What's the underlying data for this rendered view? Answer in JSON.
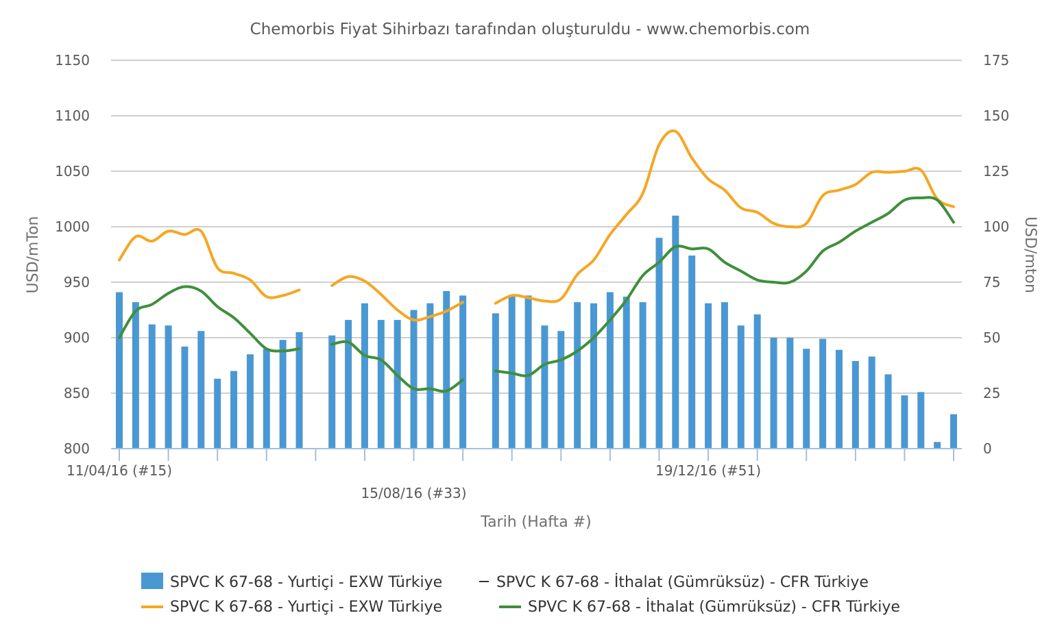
{
  "colors": {
    "bars": "#4a98d3",
    "line_a": "#f6a623",
    "line_b": "#3f8f3b",
    "grid": "#bfbfbf",
    "axis": "#a6bfd6"
  },
  "chart_data": {
    "type": "bar",
    "title": "Chemorbis Fiyat Sihirbazı tarafından oluşturuldu - www.chemorbis.com",
    "xlabel": "Tarih (Hafta #)",
    "ylabel": "USD/mTon",
    "y2label": "USD/mton",
    "ylim": [
      800,
      1150
    ],
    "y2lim": [
      0,
      175
    ],
    "yticks": [
      800,
      850,
      900,
      950,
      1000,
      1050,
      1100,
      1150
    ],
    "y2ticks": [
      0,
      25,
      50,
      75,
      100,
      125,
      150,
      175
    ],
    "grid": true,
    "legend_position": "bottom",
    "x_range": [
      0,
      51
    ],
    "x_labels": [
      {
        "x": 0,
        "text": "11/04/16 (#15)",
        "row": 1
      },
      {
        "x": 18,
        "text": "15/08/16 (#33)",
        "row": 2
      },
      {
        "x": 36,
        "text": "19/12/16 (#51)",
        "row": 1
      }
    ],
    "x_tick_marks": [
      0,
      3,
      6,
      9,
      12,
      15,
      18,
      21,
      24,
      27,
      30,
      33,
      36,
      39,
      42,
      45,
      48,
      51
    ],
    "series": [
      {
        "name": "SPVC K 67-68 - Yurtiçi - EXW Türkiye",
        "axis": "left",
        "kind": "bar",
        "x": [
          0,
          1,
          2,
          3,
          4,
          5,
          6,
          7,
          8,
          9,
          10,
          11,
          13,
          14,
          15,
          16,
          17,
          18,
          19,
          20,
          21,
          23,
          24,
          25,
          26,
          27,
          28,
          29,
          30,
          31,
          32,
          33,
          34,
          35,
          36,
          37,
          38,
          39,
          40,
          41,
          42,
          43,
          44,
          45,
          46,
          47,
          48,
          49,
          50,
          51
        ],
        "values": [
          941,
          932,
          912,
          911,
          892,
          906,
          863,
          870,
          885,
          890,
          898,
          905,
          902,
          916,
          931,
          916,
          916,
          925,
          931,
          942,
          938,
          922,
          938,
          938,
          911,
          906,
          932,
          931,
          941,
          937,
          932,
          990,
          1010,
          974,
          931,
          932,
          911,
          921,
          900,
          900,
          890,
          899,
          889,
          879,
          883,
          867,
          848,
          851,
          806,
          831
        ]
      },
      {
        "name": "SPVC K 67-68 - Yurtiçi - EXW Türkiye",
        "axis": "left",
        "kind": "line",
        "segments": [
          {
            "x": [
              0,
              1,
              2,
              3,
              4,
              5,
              6,
              7,
              8,
              9,
              10,
              11
            ],
            "values": [
              970,
              991,
              987,
              996,
              993,
              996,
              963,
              958,
              952,
              937,
              938,
              943
            ]
          },
          {
            "x": [
              13,
              14,
              15,
              16,
              17,
              18,
              19,
              20,
              21
            ],
            "values": [
              947,
              955,
              951,
              939,
              925,
              916,
              919,
              924,
              932
            ]
          },
          {
            "x": [
              23,
              24,
              25,
              26,
              27,
              28,
              29,
              30,
              31,
              32,
              33,
              34,
              35,
              36,
              37,
              38,
              39,
              40,
              41,
              42,
              43,
              44,
              45,
              46,
              47,
              48,
              49,
              50,
              51
            ],
            "values": [
              931,
              938,
              936,
              933,
              935,
              957,
              970,
              993,
              1011,
              1030,
              1074,
              1086,
              1062,
              1043,
              1033,
              1017,
              1013,
              1003,
              1000,
              1003,
              1028,
              1033,
              1038,
              1049,
              1049,
              1050,
              1051,
              1025,
              1018
            ]
          }
        ]
      },
      {
        "name": "SPVC K 67-68 - İthalat (Gümrüksüz) - CFR Türkiye",
        "axis": "right",
        "kind": "line",
        "segments": [
          {
            "x": [
              0,
              1,
              2,
              3,
              4,
              5,
              6,
              7,
              8,
              9,
              10,
              11
            ],
            "values": [
              50,
              62,
              65,
              70,
              73,
              71,
              64,
              59,
              52,
              45,
              44,
              45
            ]
          },
          {
            "x": [
              13,
              14,
              15,
              16,
              17,
              18,
              19,
              20,
              21
            ],
            "values": [
              47,
              48,
              42,
              40,
              33,
              27,
              27,
              26,
              31
            ]
          },
          {
            "x": [
              23,
              24,
              25,
              26,
              27,
              28,
              29,
              30,
              31,
              32,
              33,
              34,
              35,
              36,
              37,
              38,
              39,
              40,
              41,
              42,
              43,
              44,
              45,
              46,
              47,
              48,
              49,
              50,
              51
            ],
            "values": [
              35,
              34,
              33,
              38,
              40,
              44,
              50,
              58,
              67,
              78,
              84,
              91,
              90,
              90,
              84,
              80,
              76,
              75,
              75,
              80,
              89,
              93,
              98,
              102,
              106,
              112,
              113,
              112,
              102
            ]
          }
        ]
      }
    ],
    "legend": [
      {
        "label": "SPVC K 67-68 - Yurtiçi - EXW Türkiye",
        "marker": "box"
      },
      {
        "label": "SPVC K 67-68 - İthalat (Gümrüksüz) - CFR Türkiye",
        "marker": "thin"
      },
      {
        "label": "SPVC K 67-68 - Yurtiçi - EXW Türkiye",
        "marker": "line-a"
      },
      {
        "label": "SPVC K 67-68 - İthalat (Gümrüksüz) - CFR Türkiye",
        "marker": "line-b"
      }
    ]
  }
}
